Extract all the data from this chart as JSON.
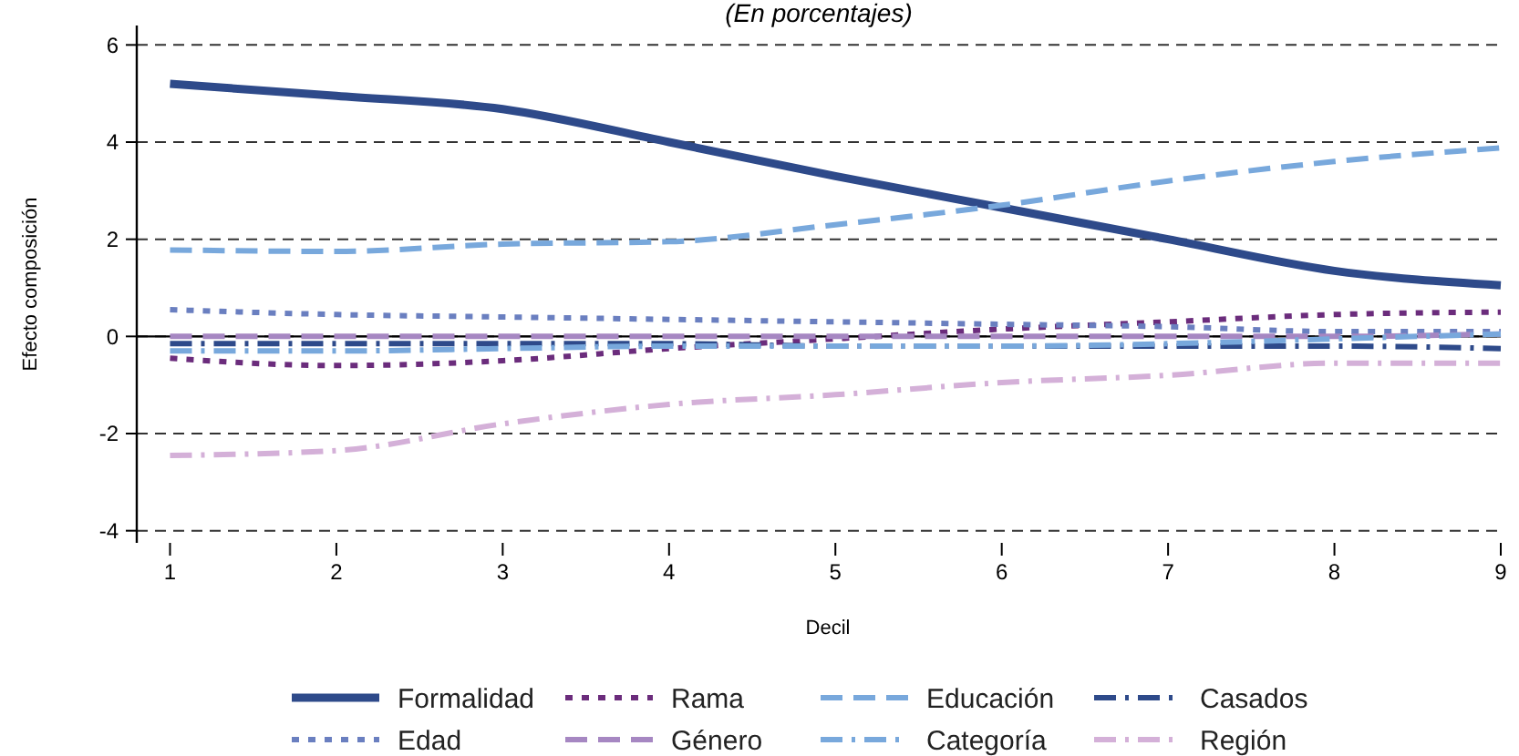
{
  "chart_data": {
    "type": "line",
    "title": "(En porcentajes)",
    "xlabel": "Decil",
    "ylabel": "Efecto composición",
    "x": [
      1,
      2,
      3,
      4,
      5,
      6,
      7,
      8,
      9
    ],
    "xlim": [
      0.8,
      9
    ],
    "xticks": [
      1,
      2,
      3,
      4,
      5,
      6,
      7,
      8,
      9
    ],
    "ylim": [
      -4.25,
      6.4
    ],
    "yticks": [
      -4,
      -2,
      0,
      2,
      4,
      6
    ],
    "grid": "y",
    "legend": "bottom",
    "ref_lines": [
      {
        "axis": "y",
        "value": 0,
        "color": "#000000",
        "line_style": "solid"
      }
    ],
    "series": [
      {
        "name": "Formalidad",
        "color": "#2e4a8a",
        "line_style": "solid",
        "values": [
          5.2,
          4.95,
          4.68,
          4.0,
          3.3,
          2.65,
          2.0,
          1.35,
          1.05
        ]
      },
      {
        "name": "Rama",
        "color": "#6b2c7c",
        "line_style": "dotted",
        "values": [
          -0.45,
          -0.6,
          -0.5,
          -0.25,
          -0.05,
          0.15,
          0.3,
          0.45,
          0.5
        ]
      },
      {
        "name": "Educación",
        "color": "#78a8dc",
        "line_style": "dashed",
        "values": [
          1.78,
          1.75,
          1.9,
          1.95,
          2.3,
          2.7,
          3.2,
          3.6,
          3.88
        ]
      },
      {
        "name": "Casados",
        "color": "#2e4a8a",
        "line_style": "dashdot",
        "values": [
          -0.15,
          -0.15,
          -0.15,
          -0.15,
          -0.2,
          -0.2,
          -0.2,
          -0.2,
          -0.25
        ]
      },
      {
        "name": "Edad",
        "color": "#6a7fc0",
        "line_style": "dotted",
        "values": [
          0.55,
          0.45,
          0.4,
          0.35,
          0.3,
          0.25,
          0.2,
          0.1,
          0.1
        ]
      },
      {
        "name": "Género",
        "color": "#a687c2",
        "line_style": "dashed",
        "values": [
          0,
          0,
          0,
          0,
          0,
          0,
          0,
          0,
          0.05
        ]
      },
      {
        "name": "Categoría",
        "color": "#78a8dc",
        "line_style": "dashdot",
        "values": [
          -0.3,
          -0.3,
          -0.25,
          -0.2,
          -0.2,
          -0.2,
          -0.15,
          -0.05,
          0.05
        ]
      },
      {
        "name": "Región",
        "color": "#d4b0d8",
        "line_style": "dashdot",
        "values": [
          -2.45,
          -2.35,
          -1.8,
          -1.4,
          -1.2,
          -0.95,
          -0.8,
          -0.55,
          -0.55
        ]
      }
    ]
  }
}
